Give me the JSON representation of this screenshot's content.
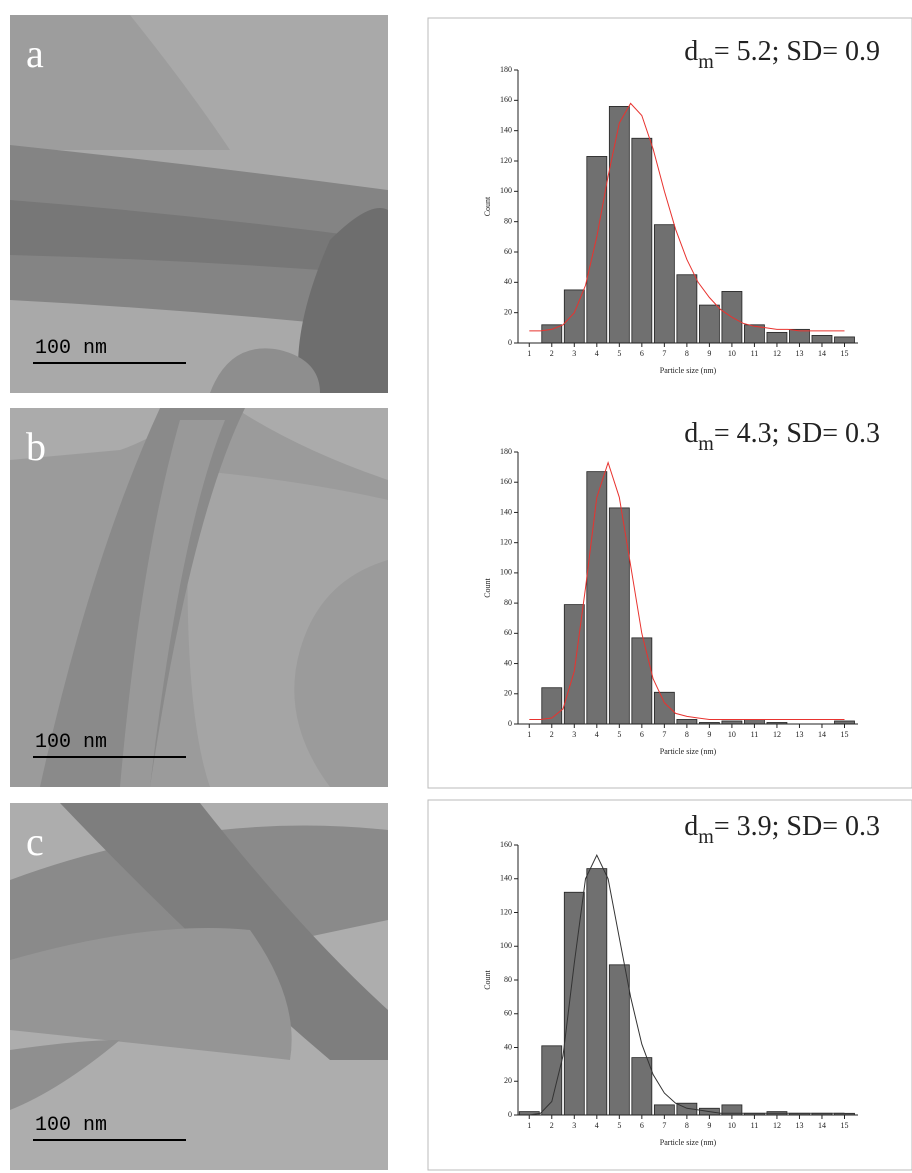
{
  "panels": [
    {
      "label": "a",
      "scale_bar": "100 nm"
    },
    {
      "label": "b",
      "scale_bar": "100 nm"
    },
    {
      "label": "c",
      "scale_bar": "100 nm"
    }
  ],
  "chart_data": [
    {
      "type": "bar",
      "annotation": {
        "symbol": "d",
        "subscript": "m",
        "text": "= 5.2; SD= 0.9"
      },
      "x_label": "Particle size (nm)",
      "y_label": "Count",
      "color": "#707070",
      "x": [
        1,
        2,
        3,
        4,
        5,
        6,
        7,
        8,
        9,
        10,
        11,
        12,
        13,
        14,
        15
      ],
      "values": [
        0,
        12,
        35,
        123,
        156,
        135,
        78,
        45,
        25,
        34,
        12,
        7,
        9,
        5,
        4
      ],
      "fit": {
        "color": "#e8332f",
        "x": [
          1,
          1.5,
          2,
          2.5,
          3,
          3.5,
          4,
          4.5,
          5,
          5.5,
          6,
          6.5,
          7,
          7.5,
          8,
          8.5,
          9,
          9.5,
          10,
          10.5,
          11,
          11.5,
          12,
          12.5,
          13,
          13.5,
          14,
          14.5,
          15
        ],
        "values": [
          8,
          8,
          9,
          12,
          20,
          38,
          70,
          110,
          145,
          158,
          150,
          128,
          100,
          75,
          55,
          40,
          30,
          22,
          17,
          13,
          11,
          10,
          9,
          9,
          8,
          8,
          8,
          8,
          8
        ]
      },
      "xlim": [
        0.5,
        15.6
      ],
      "xticks": [
        1,
        2,
        3,
        4,
        5,
        6,
        7,
        8,
        9,
        10,
        11,
        12,
        13,
        14,
        15
      ],
      "ylim": [
        0,
        180
      ],
      "yticks": [
        0,
        20,
        40,
        60,
        80,
        100,
        120,
        140,
        160,
        180
      ]
    },
    {
      "type": "bar",
      "annotation": {
        "symbol": "d",
        "subscript": "m",
        "text": "= 4.3; SD= 0.3"
      },
      "x_label": "Particle size (nm)",
      "y_label": "Count",
      "color": "#707070",
      "x": [
        1,
        2,
        3,
        4,
        5,
        6,
        7,
        8,
        9,
        10,
        11,
        12,
        13,
        14,
        15
      ],
      "values": [
        0,
        24,
        79,
        167,
        143,
        57,
        21,
        3,
        1,
        2,
        3,
        1,
        0,
        0,
        2
      ],
      "fit": {
        "color": "#e8332f",
        "x": [
          1,
          1.5,
          2,
          2.5,
          3,
          3.5,
          4,
          4.5,
          5,
          5.5,
          6,
          6.5,
          7,
          7.5,
          8,
          8.5,
          9,
          9.5,
          10,
          10.5,
          11,
          11.5,
          12,
          12.5,
          13,
          13.5,
          14,
          14.5,
          15
        ],
        "values": [
          3,
          3,
          4,
          10,
          35,
          90,
          150,
          173,
          150,
          105,
          60,
          30,
          14,
          7,
          5,
          4,
          3,
          3,
          3,
          3,
          3,
          3,
          3,
          3,
          3,
          3,
          3,
          3,
          3
        ]
      },
      "xlim": [
        0.5,
        15.6
      ],
      "xticks": [
        1,
        2,
        3,
        4,
        5,
        6,
        7,
        8,
        9,
        10,
        11,
        12,
        13,
        14,
        15
      ],
      "ylim": [
        0,
        180
      ],
      "yticks": [
        0,
        20,
        40,
        60,
        80,
        100,
        120,
        140,
        160,
        180
      ]
    },
    {
      "type": "bar",
      "annotation": {
        "symbol": "d",
        "subscript": "m",
        "text": "= 3.9; SD= 0.3"
      },
      "x_label": "Particle size (nm)",
      "y_label": "Count",
      "color": "#707070",
      "x": [
        1,
        2,
        3,
        4,
        5,
        6,
        7,
        8,
        9,
        10,
        11,
        12,
        13,
        14,
        15
      ],
      "values": [
        2,
        41,
        132,
        146,
        89,
        34,
        6,
        7,
        4,
        6,
        1,
        2,
        1,
        1,
        1
      ],
      "fit": {
        "color": "#333333",
        "x": [
          1,
          1.5,
          2,
          2.5,
          3,
          3.5,
          4,
          4.5,
          5,
          5.5,
          6,
          6.5,
          7,
          7.5,
          8,
          8.5,
          9,
          9.5,
          10,
          10.5,
          11,
          11.5,
          12,
          12.5,
          13,
          13.5,
          14,
          14.5,
          15
        ],
        "values": [
          0,
          1,
          8,
          35,
          90,
          140,
          154,
          140,
          105,
          70,
          42,
          24,
          13,
          7,
          4,
          3,
          2,
          1,
          1,
          1,
          1,
          1,
          1,
          1,
          1,
          1,
          1,
          1,
          1
        ]
      },
      "xlim": [
        0.5,
        15.6
      ],
      "xticks": [
        1,
        2,
        3,
        4,
        5,
        6,
        7,
        8,
        9,
        10,
        11,
        12,
        13,
        14,
        15
      ],
      "ylim": [
        0,
        160
      ],
      "yticks": [
        0,
        20,
        40,
        60,
        80,
        100,
        120,
        140,
        160
      ]
    }
  ]
}
